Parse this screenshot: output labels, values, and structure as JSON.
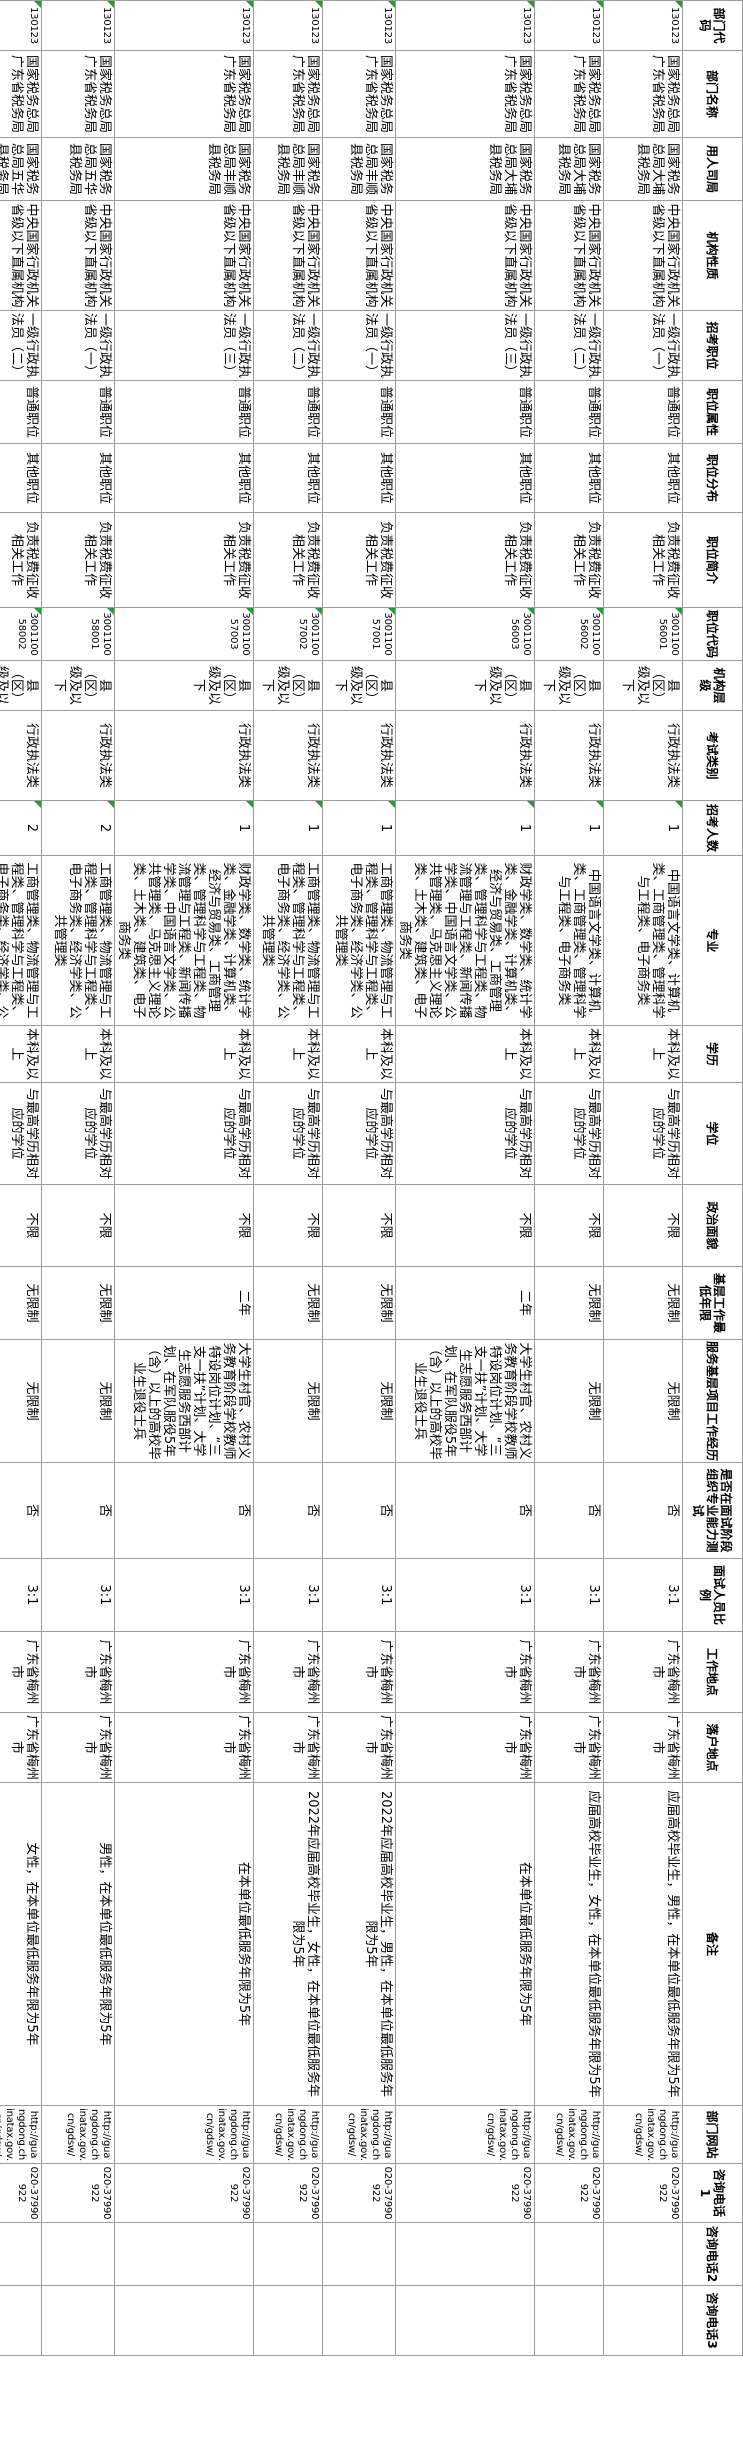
{
  "table": {
    "headers": [
      "部门代码",
      "部门名称",
      "用人司局",
      "机构性质",
      "招考职位",
      "职位属性",
      "职位分布",
      "职位简介",
      "职位代码",
      "机构层级",
      "考试类别",
      "招考人数",
      "专业",
      "学历",
      "学位",
      "政治面貌",
      "基层工作最低年限",
      "服务基层项目工作经历",
      "是否在面试阶段组织专业能力测试",
      "面试人员比例",
      "工作地点",
      "落户地点",
      "备注",
      "部门网站",
      "咨询电话1",
      "咨询电话2",
      "咨询电话3"
    ],
    "rows": [
      [
        "130123",
        "国家税务总局广东省税务局",
        "国家税务总局大埔县税务局",
        "中央国家行政机关省级以下直属机构",
        "一级行政执法员（一）",
        "普通职位",
        "其他职位",
        "负责税费征收相关工作",
        "300110056001",
        "县（区）级及以下",
        "行政执法类",
        "1",
        "中国语言文学类、计算机类、工商管理类、管理科学与工程类、电子商务类",
        "本科及以上",
        "与最高学历相对应的学位",
        "不限",
        "无限制",
        "无限制",
        "否",
        "3:1",
        "广东省梅州市",
        "广东省梅州市",
        "应届高校毕业生，男性，在本单位最低服务年限为5年",
        "http://guangdong.chinatax.gov.cn/gdsw/",
        "020-37990922",
        "",
        ""
      ],
      [
        "130123",
        "国家税务总局广东省税务局",
        "国家税务总局大埔县税务局",
        "中央国家行政机关省级以下直属机构",
        "一级行政执法员（二）",
        "普通职位",
        "其他职位",
        "负责税费征收相关工作",
        "300110056002",
        "县（区）级及以下",
        "行政执法类",
        "1",
        "中国语言文学类、计算机类、工商管理类、管理科学与工程类、电子商务类",
        "本科及以上",
        "与最高学历相对应的学位",
        "不限",
        "无限制",
        "无限制",
        "否",
        "3:1",
        "广东省梅州市",
        "广东省梅州市",
        "应届高校毕业生，女性，在本单位最低服务年限为5年",
        "http://guangdong.chinatax.gov.cn/gdsw/",
        "020-37990922",
        "",
        ""
      ],
      [
        "130123",
        "国家税务总局广东省税务局",
        "国家税务总局大埔县税务局",
        "中央国家行政机关省级以下直属机构",
        "一级行政执法员（三）",
        "普通职位",
        "其他职位",
        "负责税费征收相关工作",
        "300110056003",
        "县（区）级及以下",
        "行政执法类",
        "1",
        "财政学类、数学类、统计学类、金融学类、计算机类、经济与贸易类、工商管理类、管理科学与工程类、物流管理与工程类、新闻传播学类、中国语言文学类、公共管理类、马克思主义理论类、土木类、建筑类、电子商务类",
        "本科及以上",
        "与最高学历相对应的学位",
        "不限",
        "二年",
        "大学生村官、农村义务教育阶段学校教师特设岗位计划、“三支一扶”计划、大学生志愿服务西部计划、在军队服役5年（含）以上的高校毕业生退役士兵",
        "否",
        "3:1",
        "广东省梅州市",
        "广东省梅州市",
        "在本单位最低服务年限为5年",
        "http://guangdong.chinatax.gov.cn/gdsw/",
        "020-37990922",
        "",
        ""
      ],
      [
        "130123",
        "国家税务总局广东省税务局",
        "国家税务总局丰顺县税务局",
        "中央国家行政机关省级以下直属机构",
        "一级行政执法员（一）",
        "普通职位",
        "其他职位",
        "负责税费征收相关工作",
        "300110057001",
        "县（区）级及以下",
        "行政执法类",
        "1",
        "工商管理类、物流管理与工程类、管理科学与工程类、电子商务类、经济学类、公共管理类",
        "本科及以上",
        "与最高学历相对应的学位",
        "不限",
        "无限制",
        "无限制",
        "否",
        "3:1",
        "广东省梅州市",
        "广东省梅州市",
        "2022年应届高校毕业生，男性，在本单位最低服务年限为5年",
        "http://guangdong.chinatax.gov.cn/gdsw/",
        "020-37990922",
        "",
        ""
      ],
      [
        "130123",
        "国家税务总局广东省税务局",
        "国家税务总局丰顺县税务局",
        "中央国家行政机关省级以下直属机构",
        "一级行政执法员（二）",
        "普通职位",
        "其他职位",
        "负责税费征收相关工作",
        "300110057002",
        "县（区）级及以下",
        "行政执法类",
        "1",
        "工商管理类、物流管理与工程类、管理科学与工程类、电子商务类、经济学类、公共管理类",
        "本科及以上",
        "与最高学历相对应的学位",
        "不限",
        "无限制",
        "无限制",
        "否",
        "3:1",
        "广东省梅州市",
        "广东省梅州市",
        "2022年应届高校毕业生，女性，在本单位最低服务年限为5年",
        "http://guangdong.chinatax.gov.cn/gdsw/",
        "020-37990922",
        "",
        ""
      ],
      [
        "130123",
        "国家税务总局广东省税务局",
        "国家税务总局丰顺县税务局",
        "中央国家行政机关省级以下直属机构",
        "一级行政执法员（三）",
        "普通职位",
        "其他职位",
        "负责税费征收相关工作",
        "300110057003",
        "县（区）级及以下",
        "行政执法类",
        "1",
        "财政学类、数学类、统计学类、金融学类、计算机类、经济与贸易类、工商管理类、管理科学与工程类、物流管理与工程类、新闻传播学类、中国语言文学类、公共管理类、马克思主义理论类、土木类、建筑类、电子商务类",
        "本科及以上",
        "与最高学历相对应的学位",
        "不限",
        "二年",
        "大学生村官、农村义务教育阶段学校教师特设岗位计划、“三支一扶”计划、大学生志愿服务西部计划、在军队服役5年（含）以上的高校毕业生退役士兵",
        "否",
        "3:1",
        "广东省梅州市",
        "广东省梅州市",
        "在本单位最低服务年限为5年",
        "http://guangdong.chinatax.gov.cn/gdsw/",
        "020-37990922",
        "",
        ""
      ],
      [
        "130123",
        "国家税务总局广东省税务局",
        "国家税务总局五华县税务局",
        "中央国家行政机关省级以下直属机构",
        "一级行政执法员（一）",
        "普通职位",
        "其他职位",
        "负责税费征收相关工作",
        "300110058001",
        "县（区）级及以下",
        "行政执法类",
        "2",
        "工商管理类、物流管理与工程类、管理科学与工程类、电子商务类、经济学类、公共管理类",
        "本科及以上",
        "与最高学历相对应的学位",
        "不限",
        "无限制",
        "无限制",
        "否",
        "3:1",
        "广东省梅州市",
        "广东省梅州市",
        "男性，在本单位最低服务年限为5年",
        "http://guangdong.chinatax.gov.cn/gdsw/",
        "020-37990922",
        "",
        ""
      ],
      [
        "130123",
        "国家税务总局广东省税务局",
        "国家税务总局五华县税务局",
        "中央国家行政机关省级以下直属机构",
        "一级行政执法员（二）",
        "普通职位",
        "其他职位",
        "负责税费征收相关工作",
        "300110058002",
        "县（区）级及以下",
        "行政执法类",
        "2",
        "工商管理类、物流管理与工程类、管理科学与工程类、电子商务类、经济学类、公共管理类",
        "本科及以上",
        "与最高学历相对应的学位",
        "不限",
        "无限制",
        "无限制",
        "否",
        "3:1",
        "广东省梅州市",
        "广东省梅州市",
        "女性，在本单位最低服务年限为5年",
        "http://guangdong.chinatax.gov.cn/gdsw/",
        "020-37990922",
        "",
        ""
      ]
    ],
    "colors": {
      "error_triangle": "#1f9e34",
      "grid_border": "#9b9b9b",
      "text": "#000000",
      "background": "#ffffff"
    }
  }
}
